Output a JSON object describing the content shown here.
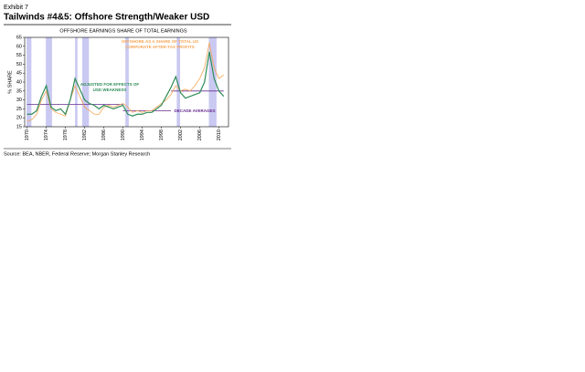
{
  "exhibit": "Exhibit 7",
  "heading": "Tailwinds #4&5: Offshore Strength/Weaker USD",
  "source": "Source: BEA, NBER, Federal Reserve; Morgan Stanley Research",
  "chart_data": {
    "type": "line",
    "title": "OFFSHORE EARNINGS SHARE OF TOTAL EARNINGS",
    "y_label": "% SHARE",
    "x": [
      1970,
      1971,
      1972,
      1973,
      1974,
      1975,
      1976,
      1977,
      1978,
      1979,
      1980,
      1981,
      1982,
      1983,
      1984,
      1985,
      1986,
      1987,
      1988,
      1989,
      1990,
      1991,
      1992,
      1993,
      1994,
      1995,
      1996,
      1997,
      1998,
      1999,
      2000,
      2001,
      2002,
      2003,
      2004,
      2005,
      2006,
      2007,
      2008,
      2009,
      2010,
      2011
    ],
    "series": [
      {
        "name": "OFFSHORE AS A SHARE OF TOTAL US CORPORATE AFTER-TAX PROFITS",
        "color": "#f5a455",
        "values": [
          18,
          19,
          22,
          30,
          35,
          25,
          23,
          22,
          21,
          30,
          38,
          32,
          26,
          24,
          22,
          22,
          26,
          27,
          26,
          27,
          28,
          26,
          23,
          24,
          23,
          24,
          24,
          26,
          28,
          30,
          33,
          38,
          35,
          36,
          35,
          38,
          42,
          48,
          62,
          48,
          42,
          44
        ]
      },
      {
        "name": "ADJUSTED FOR EFFECTS OF USD WEAKNESS",
        "color": "#2e8b57",
        "values": [
          22,
          22,
          24,
          32,
          38,
          26,
          24,
          25,
          22,
          30,
          42,
          36,
          30,
          28,
          27,
          25,
          27,
          26,
          25,
          26,
          27,
          22,
          21,
          22,
          22,
          23,
          23,
          25,
          27,
          32,
          37,
          43,
          34,
          31,
          32,
          33,
          34,
          40,
          57,
          42,
          35,
          32
        ]
      }
    ],
    "decade_averages": {
      "name": "DECADE AVERAGES",
      "color": "#6a2c91",
      "segments": [
        {
          "start": 1970,
          "end": 1990,
          "value": 27.5
        },
        {
          "start": 1990,
          "end": 2000,
          "value": 24
        },
        {
          "start": 2000,
          "end": 2011,
          "value": 35
        }
      ]
    },
    "shaded_periods": [
      [
        1969.9,
        1970.9
      ],
      [
        1973.9,
        1975.2
      ],
      [
        1980,
        1980.5
      ],
      [
        1981.5,
        1982.9
      ],
      [
        1990.5,
        1991.2
      ],
      [
        2001.2,
        2001.9
      ],
      [
        2007.9,
        2009.5
      ]
    ],
    "shade_color": "#c9c9f2",
    "xlim": [
      1969.5,
      2012
    ],
    "xticks": [
      1970,
      1974,
      1978,
      1982,
      1986,
      1990,
      1994,
      1998,
      2002,
      2006,
      2010
    ],
    "ylim": [
      15,
      65
    ],
    "yticks": [
      15,
      20,
      25,
      30,
      35,
      40,
      45,
      50,
      55,
      60,
      65
    ]
  }
}
